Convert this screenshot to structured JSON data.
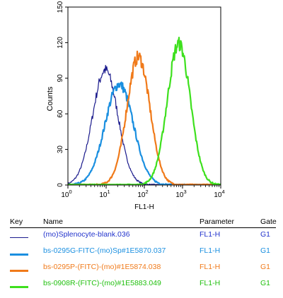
{
  "chart_data": {
    "type": "line",
    "title": "",
    "xlabel": "FL1-H",
    "ylabel": "Counts",
    "xscale": "log",
    "xlim": [
      1,
      10000
    ],
    "ylim": [
      0,
      150
    ],
    "xticks": [
      {
        "value": 1,
        "base": "10",
        "exp": "0"
      },
      {
        "value": 10,
        "base": "10",
        "exp": "1"
      },
      {
        "value": 100,
        "base": "10",
        "exp": "2"
      },
      {
        "value": 1000,
        "base": "10",
        "exp": "3"
      },
      {
        "value": 10000,
        "base": "10",
        "exp": "4"
      }
    ],
    "yticks": [
      {
        "value": 0,
        "label": "0"
      },
      {
        "value": 30,
        "label": "30"
      },
      {
        "value": 60,
        "label": "60"
      },
      {
        "value": 90,
        "label": "90"
      },
      {
        "value": 120,
        "label": "120"
      },
      {
        "value": 150,
        "label": "150"
      }
    ],
    "series": [
      {
        "name": "(mo)Splenocyte-blank.036",
        "color": "#1a1a8c",
        "width": 1.2,
        "center": 9.5,
        "peak": 97,
        "spread": 0.33
      },
      {
        "name": "bs-0295G-FITC-(mo)Sp#1E5870.037",
        "color": "#1a8fe0",
        "width": 2.2,
        "center": 22,
        "peak": 85,
        "spread": 0.37
      },
      {
        "name": "bs-0295P-(FITC)-(mo)#1E5874.038",
        "color": "#f07a1a",
        "width": 2.2,
        "center": 70,
        "peak": 108,
        "spread": 0.3
      },
      {
        "name": "bs-0908R-(FITC)-(mo)#1E5883.049",
        "color": "#3ee01e",
        "width": 2.2,
        "center": 800,
        "peak": 119,
        "spread": 0.3
      }
    ]
  },
  "legend": {
    "headers": {
      "key": "Key",
      "name": "Name",
      "parameter": "Parameter",
      "gate": "Gate"
    },
    "rows": [
      {
        "name": "(mo)Splenocyte-blank.036",
        "parameter": "FL1-H",
        "gate": "G1",
        "color": "#1a1a8c"
      },
      {
        "name": "bs-0295G-FITC-(mo)Sp#1E5870.037",
        "parameter": "FL1-H",
        "gate": "G1",
        "color": "#1a8fe0"
      },
      {
        "name": "bs-0295P-(FITC)-(mo)#1E5874.038",
        "parameter": "FL1-H",
        "gate": "G1",
        "color": "#f07a1a"
      },
      {
        "name": "bs-0908R-(FITC)-(mo)#1E5883.049",
        "parameter": "FL1-H",
        "gate": "G1",
        "color": "#3ee01e"
      }
    ],
    "text_colors": [
      "#2233cc",
      "#1a8fe0",
      "#f07a1a",
      "#22c010"
    ]
  }
}
